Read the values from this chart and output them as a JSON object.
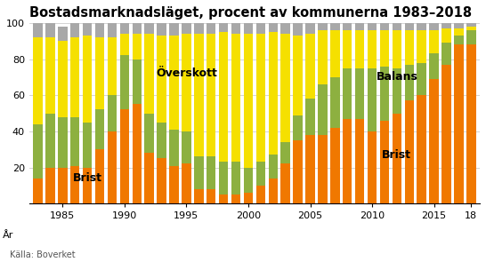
{
  "title": "Bostadsmarknadsläget, procent av kommunerna 1983–2018",
  "source": "Källa: Boverket",
  "years": [
    1983,
    1984,
    1985,
    1986,
    1987,
    1988,
    1989,
    1990,
    1991,
    1992,
    1993,
    1994,
    1995,
    1996,
    1997,
    1998,
    1999,
    2000,
    2001,
    2002,
    2003,
    2004,
    2005,
    2006,
    2007,
    2008,
    2009,
    2010,
    2011,
    2012,
    2013,
    2014,
    2015,
    2016,
    2017,
    2018
  ],
  "brist": [
    14,
    20,
    20,
    21,
    20,
    30,
    40,
    52,
    55,
    28,
    25,
    21,
    22,
    8,
    8,
    5,
    5,
    6,
    10,
    14,
    22,
    35,
    38,
    38,
    42,
    47,
    47,
    40,
    46,
    50,
    57,
    60,
    69,
    77,
    88,
    88
  ],
  "balans": [
    30,
    30,
    28,
    27,
    25,
    22,
    20,
    30,
    25,
    22,
    20,
    20,
    18,
    18,
    18,
    18,
    18,
    14,
    13,
    13,
    12,
    14,
    20,
    28,
    28,
    28,
    28,
    35,
    30,
    25,
    20,
    18,
    14,
    12,
    5,
    8
  ],
  "overskott": [
    48,
    42,
    42,
    44,
    48,
    40,
    32,
    12,
    14,
    44,
    48,
    52,
    54,
    68,
    68,
    72,
    71,
    74,
    71,
    68,
    60,
    44,
    36,
    30,
    26,
    21,
    21,
    21,
    20,
    21,
    19,
    18,
    13,
    8,
    4,
    2
  ],
  "gray": [
    8,
    8,
    8,
    8,
    7,
    8,
    8,
    6,
    6,
    6,
    7,
    7,
    6,
    6,
    6,
    5,
    6,
    6,
    6,
    5,
    6,
    7,
    6,
    4,
    4,
    4,
    4,
    4,
    4,
    4,
    4,
    4,
    4,
    3,
    3,
    2
  ],
  "color_brist": "#f07800",
  "color_balans": "#8db040",
  "color_overskott": "#f5e000",
  "color_gray": "#a8a8a8",
  "ann_brist1_x": 1987,
  "ann_brist1_y": 14,
  "ann_overskott_x": 1995,
  "ann_overskott_y": 72,
  "ann_balans_x": 2012,
  "ann_balans_y": 70,
  "ann_brist2_x": 2012,
  "ann_brist2_y": 27,
  "ylim": [
    0,
    100
  ],
  "xlim_left": 1982.3,
  "xlim_right": 2018.7,
  "bar_width": 0.75,
  "yticks": [
    20,
    40,
    60,
    80,
    100
  ],
  "xtick_positions": [
    1985,
    1990,
    1995,
    2000,
    2005,
    2010,
    2015,
    2018
  ],
  "xtick_labels": [
    "1985",
    "1990",
    "1995",
    "2000",
    "2005",
    "2010",
    "2015",
    "18"
  ],
  "grid_color": "#cccccc",
  "title_fontsize": 10.5,
  "ann_fontsize": 9
}
